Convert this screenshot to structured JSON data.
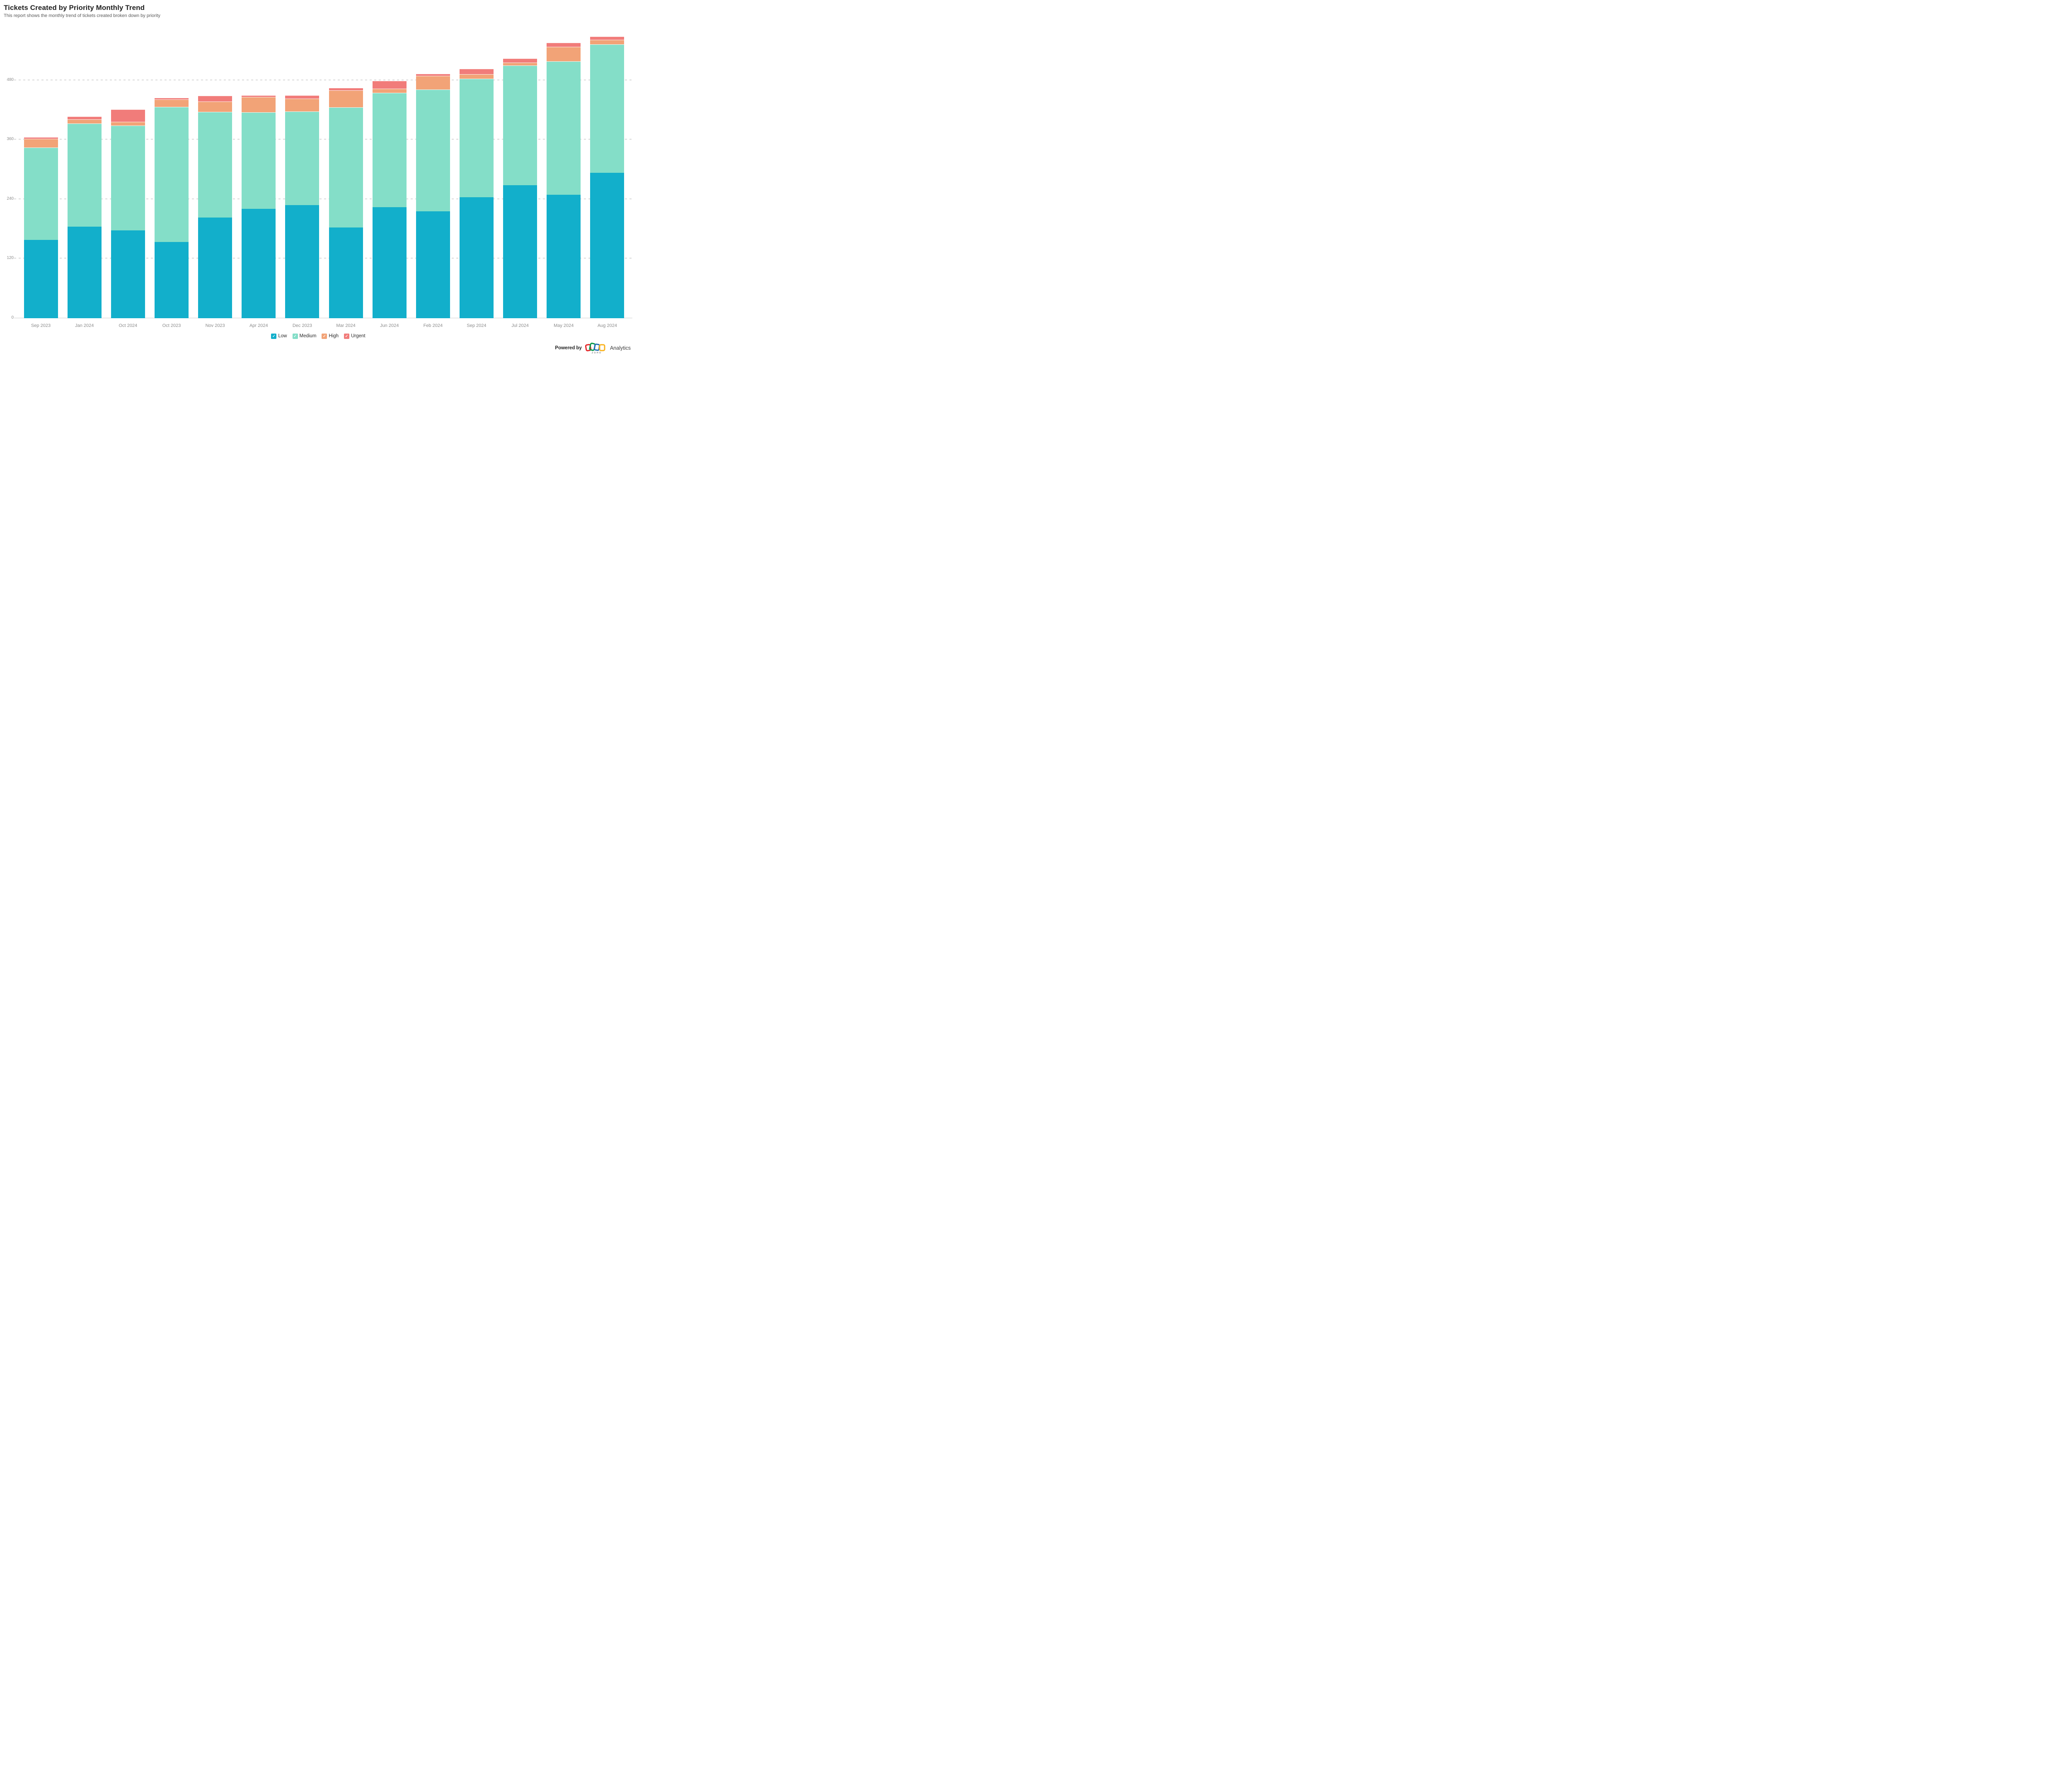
{
  "header": {
    "title": "Tickets Created by Priority Monthly Trend",
    "subtitle": "This report shows the monthly trend of tickets created broken down by priority"
  },
  "y_axis": {
    "ticks": [
      0,
      120,
      240,
      360,
      480
    ]
  },
  "legend": {
    "check_glyph": "✓"
  },
  "footer": {
    "powered_by": "Powered by",
    "logo_word": "ZOHO",
    "brand": "Analytics"
  },
  "colors": {
    "low": "#12AFCB",
    "medium": "#84DEC8",
    "high": "#F2A377",
    "urgent": "#F17C7A",
    "grid": "#D7D7D7",
    "baseline": "#CCCCCC",
    "axis_label": "#8C8C8C",
    "logo_red": "#E42527",
    "logo_green": "#089949",
    "logo_blue": "#226DB4",
    "logo_yellow": "#F9B21D"
  },
  "chart_data": {
    "type": "bar",
    "stacked": true,
    "title": "Tickets Created by Priority Monthly Trend",
    "xlabel": "",
    "ylabel": "",
    "ylim": [
      0,
      600
    ],
    "grid": "dotted-horizontal",
    "gridlines": [
      120,
      240,
      360,
      480
    ],
    "legend_position": "bottom",
    "categories": [
      "Sep 2023",
      "Jan 2024",
      "Oct 2024",
      "Oct 2023",
      "Nov 2023",
      "Apr 2024",
      "Dec 2023",
      "Mar 2024",
      "Jun 2024",
      "Feb 2024",
      "Sep 2024",
      "Jul 2024",
      "May 2024",
      "Aug 2024"
    ],
    "series": [
      {
        "name": "Low",
        "color": "#12AFCB",
        "values": [
          158,
          185,
          177,
          154,
          203,
          221,
          228,
          183,
          224,
          216,
          244,
          268,
          249,
          293
        ]
      },
      {
        "name": "Medium",
        "color": "#84DEC8",
        "values": [
          186,
          208,
          212,
          272,
          213,
          194,
          189,
          242,
          231,
          245,
          239,
          242,
          269,
          259
        ]
      },
      {
        "name": "High",
        "color": "#F2A377",
        "values": [
          18,
          8,
          7,
          15,
          21,
          31,
          26,
          35,
          8,
          28,
          9,
          6,
          29,
          10
        ]
      },
      {
        "name": "Urgent",
        "color": "#F17C7A",
        "values": [
          3,
          6,
          25,
          4,
          12,
          4,
          7,
          5,
          16,
          4,
          11,
          8,
          9,
          6
        ]
      }
    ],
    "totals": [
      365,
      407,
      421,
      445,
      449,
      450,
      450,
      465,
      479,
      493,
      503,
      524,
      556,
      568
    ]
  }
}
